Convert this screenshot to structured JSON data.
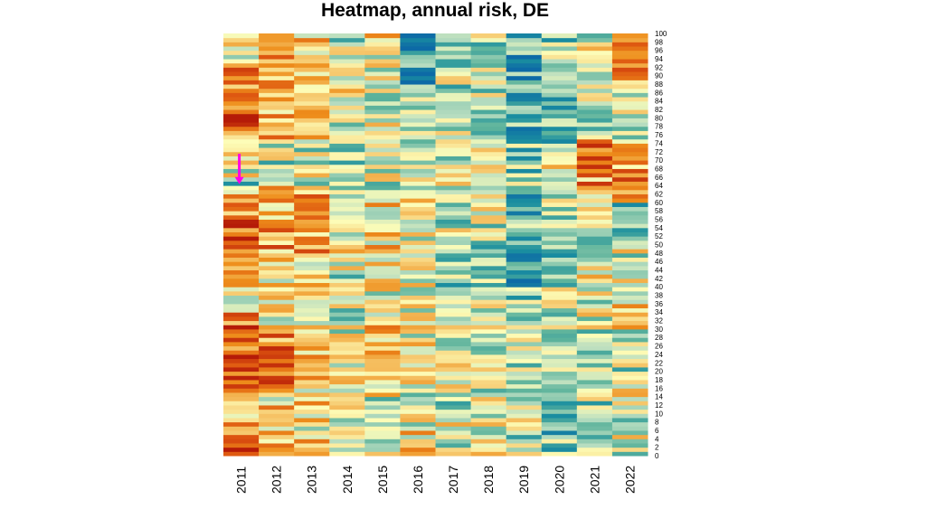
{
  "chart_data": {
    "type": "heatmap",
    "title": "Heatmap, annual risk, DE",
    "xlabel": "",
    "ylabel": "",
    "x_categories": [
      "2011",
      "2012",
      "2013",
      "2014",
      "2015",
      "2016",
      "2017",
      "2018",
      "2019",
      "2020",
      "2021",
      "2022"
    ],
    "y_tick_labels": [
      "0",
      "2",
      "4",
      "6",
      "8",
      "10",
      "12",
      "14",
      "16",
      "18",
      "20",
      "22",
      "24",
      "26",
      "28",
      "30",
      "32",
      "34",
      "36",
      "38",
      "40",
      "42",
      "44",
      "46",
      "48",
      "50",
      "52",
      "54",
      "56",
      "58",
      "60",
      "62",
      "64",
      "66",
      "68",
      "70",
      "72",
      "74",
      "76",
      "78",
      "80",
      "82",
      "84",
      "86",
      "88",
      "90",
      "92",
      "94",
      "96",
      "98",
      "100"
    ],
    "ylim": [
      0,
      100
    ],
    "color_scale": {
      "low": "#0d6aa6",
      "mid": "#fdfdb8",
      "high": "#b51b08",
      "stops": [
        "#0d6aa6",
        "#1a8ea0",
        "#5fb49c",
        "#b6dcc0",
        "#fdfdb8",
        "#f6c569",
        "#ee8e1b",
        "#dd5410",
        "#b51b08"
      ]
    },
    "columns": [
      {
        "year": "2011",
        "row_value_bands": [
          [
            0,
            4,
            0.8
          ],
          [
            4,
            10,
            0.7
          ],
          [
            10,
            14,
            0.55
          ],
          [
            14,
            20,
            0.75
          ],
          [
            20,
            22,
            0.92
          ],
          [
            22,
            30,
            0.85
          ],
          [
            30,
            34,
            0.78
          ],
          [
            34,
            38,
            0.5
          ],
          [
            38,
            42,
            0.65
          ],
          [
            42,
            56,
            0.86
          ],
          [
            56,
            62,
            0.8
          ],
          [
            62,
            66,
            0.35
          ],
          [
            66,
            75,
            0.45
          ],
          [
            75,
            84,
            0.8
          ],
          [
            84,
            94,
            0.7
          ],
          [
            94,
            100,
            0.55
          ]
        ]
      },
      {
        "year": "2012",
        "row_value_bands": [
          [
            0,
            6,
            0.6
          ],
          [
            6,
            16,
            0.58
          ],
          [
            16,
            24,
            0.72
          ],
          [
            24,
            30,
            0.75
          ],
          [
            30,
            38,
            0.5
          ],
          [
            38,
            46,
            0.6
          ],
          [
            46,
            56,
            0.7
          ],
          [
            56,
            64,
            0.62
          ],
          [
            64,
            74,
            0.42
          ],
          [
            74,
            84,
            0.65
          ],
          [
            84,
            96,
            0.72
          ],
          [
            96,
            100,
            0.6
          ]
        ]
      },
      {
        "year": "2013",
        "row_value_bands": [
          [
            0,
            6,
            0.62
          ],
          [
            6,
            14,
            0.55
          ],
          [
            14,
            22,
            0.6
          ],
          [
            22,
            30,
            0.62
          ],
          [
            30,
            38,
            0.48
          ],
          [
            38,
            46,
            0.58
          ],
          [
            46,
            62,
            0.68
          ],
          [
            62,
            74,
            0.45
          ],
          [
            74,
            84,
            0.6
          ],
          [
            84,
            94,
            0.65
          ],
          [
            94,
            100,
            0.6
          ]
        ]
      },
      {
        "year": "2014",
        "row_value_bands": [
          [
            0,
            10,
            0.4
          ],
          [
            10,
            18,
            0.48
          ],
          [
            18,
            26,
            0.5
          ],
          [
            26,
            38,
            0.45
          ],
          [
            38,
            44,
            0.42
          ],
          [
            44,
            56,
            0.55
          ],
          [
            56,
            66,
            0.5
          ],
          [
            66,
            74,
            0.35
          ],
          [
            74,
            84,
            0.42
          ],
          [
            84,
            92,
            0.48
          ],
          [
            92,
            100,
            0.4
          ]
        ]
      },
      {
        "year": "2015",
        "row_value_bands": [
          [
            0,
            6,
            0.5
          ],
          [
            6,
            14,
            0.45
          ],
          [
            14,
            22,
            0.52
          ],
          [
            22,
            30,
            0.55
          ],
          [
            30,
            38,
            0.6
          ],
          [
            38,
            46,
            0.5
          ],
          [
            46,
            62,
            0.56
          ],
          [
            62,
            76,
            0.45
          ],
          [
            76,
            86,
            0.48
          ],
          [
            86,
            96,
            0.5
          ],
          [
            96,
            100,
            0.6
          ]
        ]
      },
      {
        "year": "2016",
        "row_value_bands": [
          [
            0,
            6,
            0.55
          ],
          [
            6,
            16,
            0.45
          ],
          [
            16,
            26,
            0.5
          ],
          [
            26,
            36,
            0.48
          ],
          [
            36,
            46,
            0.45
          ],
          [
            46,
            56,
            0.52
          ],
          [
            56,
            66,
            0.48
          ],
          [
            66,
            76,
            0.4
          ],
          [
            76,
            88,
            0.38
          ],
          [
            88,
            100,
            0.15
          ]
        ]
      },
      {
        "year": "2017",
        "row_value_bands": [
          [
            0,
            10,
            0.45
          ],
          [
            10,
            20,
            0.42
          ],
          [
            20,
            30,
            0.45
          ],
          [
            30,
            40,
            0.42
          ],
          [
            40,
            48,
            0.35
          ],
          [
            48,
            58,
            0.4
          ],
          [
            58,
            70,
            0.42
          ],
          [
            70,
            84,
            0.38
          ],
          [
            84,
            94,
            0.4
          ],
          [
            94,
            100,
            0.35
          ]
        ]
      },
      {
        "year": "2018",
        "row_value_bands": [
          [
            0,
            10,
            0.5
          ],
          [
            10,
            20,
            0.42
          ],
          [
            20,
            30,
            0.45
          ],
          [
            30,
            40,
            0.42
          ],
          [
            40,
            50,
            0.38
          ],
          [
            50,
            62,
            0.42
          ],
          [
            62,
            74,
            0.45
          ],
          [
            74,
            86,
            0.4
          ],
          [
            86,
            94,
            0.42
          ],
          [
            94,
            100,
            0.38
          ]
        ]
      },
      {
        "year": "2019",
        "row_value_bands": [
          [
            0,
            10,
            0.4
          ],
          [
            10,
            20,
            0.35
          ],
          [
            20,
            30,
            0.38
          ],
          [
            30,
            40,
            0.35
          ],
          [
            40,
            50,
            0.22
          ],
          [
            50,
            62,
            0.25
          ],
          [
            62,
            74,
            0.32
          ],
          [
            74,
            86,
            0.2
          ],
          [
            86,
            100,
            0.18
          ]
        ]
      },
      {
        "year": "2020",
        "row_value_bands": [
          [
            0,
            10,
            0.28
          ],
          [
            10,
            20,
            0.25
          ],
          [
            20,
            30,
            0.32
          ],
          [
            30,
            40,
            0.38
          ],
          [
            40,
            50,
            0.32
          ],
          [
            50,
            62,
            0.35
          ],
          [
            62,
            74,
            0.48
          ],
          [
            74,
            86,
            0.32
          ],
          [
            86,
            100,
            0.36
          ]
        ]
      },
      {
        "year": "2021",
        "row_value_bands": [
          [
            0,
            10,
            0.28
          ],
          [
            10,
            20,
            0.38
          ],
          [
            20,
            30,
            0.32
          ],
          [
            30,
            40,
            0.45
          ],
          [
            40,
            50,
            0.48
          ],
          [
            50,
            62,
            0.45
          ],
          [
            62,
            76,
            0.72
          ],
          [
            76,
            88,
            0.42
          ],
          [
            88,
            100,
            0.45
          ]
        ]
      },
      {
        "year": "2022",
        "row_value_bands": [
          [
            0,
            10,
            0.45
          ],
          [
            10,
            20,
            0.48
          ],
          [
            20,
            30,
            0.42
          ],
          [
            30,
            40,
            0.55
          ],
          [
            40,
            50,
            0.45
          ],
          [
            50,
            60,
            0.35
          ],
          [
            60,
            74,
            0.75
          ],
          [
            74,
            86,
            0.48
          ],
          [
            86,
            94,
            0.68
          ],
          [
            94,
            100,
            0.78
          ]
        ]
      }
    ],
    "annotation": {
      "type": "arrow",
      "color": "#ff00e6",
      "direction": "down",
      "column": "2011",
      "from_y": 71.5,
      "to_y": 64.5
    }
  }
}
